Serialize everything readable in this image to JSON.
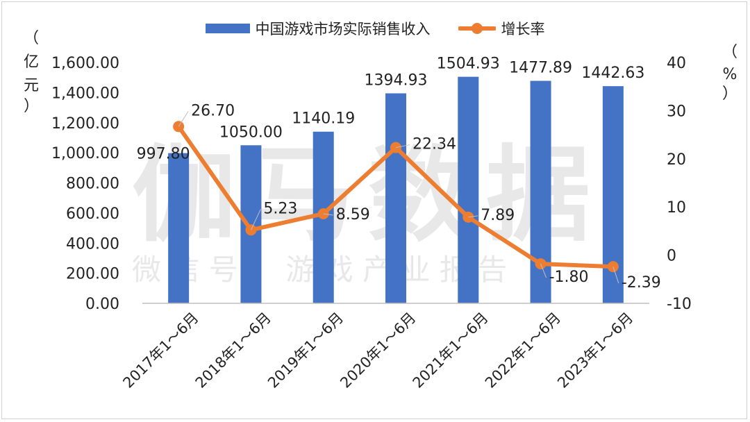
{
  "legend": {
    "bar_label": "中国游戏市场实际销售收入",
    "line_label": "增长率"
  },
  "axes": {
    "left_unit": [
      "（",
      "亿",
      "元",
      "）"
    ],
    "right_unit": [
      "（",
      "%",
      "）"
    ]
  },
  "watermark": {
    "big": "伽马数据",
    "small": "微 信 号 ： 游 戏 产 业 报 告"
  },
  "colors": {
    "bar": "#4472C4",
    "line": "#ED7D31",
    "gridline": "#d9d9d9",
    "text": "#222222"
  },
  "chart_data": {
    "type": "bar",
    "categories": [
      "2017年1～6月",
      "2018年1～6月",
      "2019年1～6月",
      "2020年1～6月",
      "2021年1～6月",
      "2022年1～6月",
      "2023年1～6月"
    ],
    "series": [
      {
        "name": "中国游戏市场实际销售收入",
        "type": "bar",
        "axis": "left",
        "values": [
          997.8,
          1050.0,
          1140.19,
          1394.93,
          1504.93,
          1477.89,
          1442.63
        ],
        "labels": [
          "997.80",
          "1050.00",
          "1140.19",
          "1394.93",
          "1504.93",
          "1477.89",
          "1442.63"
        ]
      },
      {
        "name": "增长率",
        "type": "line",
        "axis": "right",
        "values": [
          26.7,
          5.23,
          8.59,
          22.34,
          7.89,
          -1.8,
          -2.39
        ],
        "labels": [
          "26.70",
          "5.23",
          "8.59",
          "22.34",
          "7.89",
          "-1.80",
          "-2.39"
        ]
      }
    ],
    "y_left": {
      "ylim": [
        0,
        1600
      ],
      "ticks": [
        0,
        200,
        400,
        600,
        800,
        1000,
        1200,
        1400,
        1600
      ],
      "tick_labels": [
        "0.00",
        "200.00",
        "400.00",
        "600.00",
        "800.00",
        "1,000.00",
        "1,200.00",
        "1,400.00",
        "1,600.00"
      ]
    },
    "y_right": {
      "ylim": [
        -10,
        40
      ],
      "ticks": [
        -10,
        0,
        10,
        20,
        30,
        40
      ],
      "tick_labels": [
        "-10",
        "0",
        "10",
        "20",
        "30",
        "40"
      ]
    },
    "grid": false,
    "legend_position": "top"
  }
}
